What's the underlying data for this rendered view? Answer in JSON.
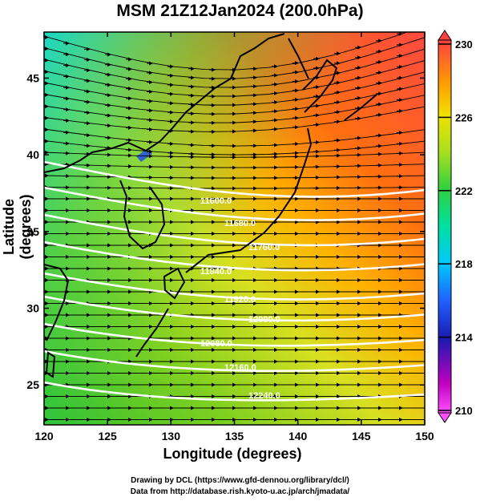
{
  "title": "MSM 21Z12Jan2024 (200.0hPa)",
  "axes": {
    "xlabel": "Longitude (degrees)",
    "ylabel": "Latitude  (degrees)",
    "x_ticks": [
      "120",
      "125",
      "130",
      "135",
      "140",
      "145",
      "150"
    ],
    "y_ticks": [
      "25",
      "30",
      "35",
      "40",
      "45"
    ]
  },
  "colorbar": {
    "ticks": [
      "230",
      "226",
      "222",
      "218",
      "214",
      "210"
    ],
    "colors": [
      "#ff40ff",
      "#c000c0",
      "#2020c0",
      "#2060ff",
      "#00c0ff",
      "#00e0c0",
      "#20d060",
      "#40d020",
      "#a0e020",
      "#e0e000",
      "#ffc000",
      "#ff8000",
      "#ff5040",
      "#ff3040"
    ]
  },
  "contour_labels": [
    "11600.0",
    "11680.0",
    "11760.0",
    "11840.0",
    "11920.0",
    "12000.0",
    "12080.0",
    "12160.0",
    "12240.0"
  ],
  "credits": {
    "line1": "Drawing by DCL (https://www.gfd-dennou.org/library/dcl/)",
    "line2": "Data from http://database.rish.kyoto-u.ac.jp/arch/jmadata/"
  }
}
